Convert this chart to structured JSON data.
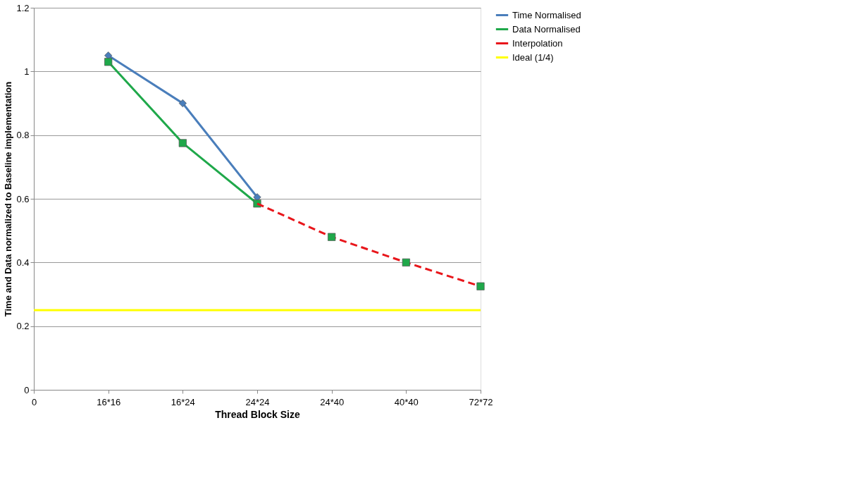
{
  "chart_data": {
    "type": "line",
    "xlabel": "Thread Block Size",
    "ylabel": "Time and Data normalized to Baseline implementation",
    "categories": [
      "0",
      "16*16",
      "16*24",
      "24*24",
      "24*40",
      "40*40",
      "72*72"
    ],
    "ylim": [
      0,
      1.2
    ],
    "yticks": [
      0,
      0.2,
      0.4,
      0.6,
      0.8,
      1,
      1.2
    ],
    "grid": "y",
    "legend": "right",
    "series": [
      {
        "name": "Time Normalised",
        "color": "#4a7ebb",
        "marker": "diamond",
        "line_style": "solid",
        "values": [
          null,
          1.05,
          0.9,
          0.605,
          null,
          null,
          null
        ]
      },
      {
        "name": "Data Normalised",
        "color": "#1fa84a",
        "marker": "square",
        "line_style": "solid",
        "values": [
          null,
          1.03,
          0.775,
          0.585,
          null,
          null,
          null
        ]
      },
      {
        "name": "Interpolation",
        "color": "#e8161b",
        "marker": "none",
        "line_style": "dashed",
        "values": [
          null,
          null,
          null,
          0.585,
          0.48,
          0.4,
          0.325
        ]
      },
      {
        "type": "scatter",
        "color": "#1fa84a",
        "marker": "square",
        "values": [
          null,
          null,
          null,
          null,
          0.48,
          0.4,
          0.325
        ]
      },
      {
        "name": "Ideal (1/4)",
        "color": "#ffff00",
        "marker": "none",
        "line_style": "solid",
        "values": [
          0.25,
          0.25,
          0.25,
          0.25,
          0.25,
          0.25,
          0.25
        ]
      }
    ]
  }
}
